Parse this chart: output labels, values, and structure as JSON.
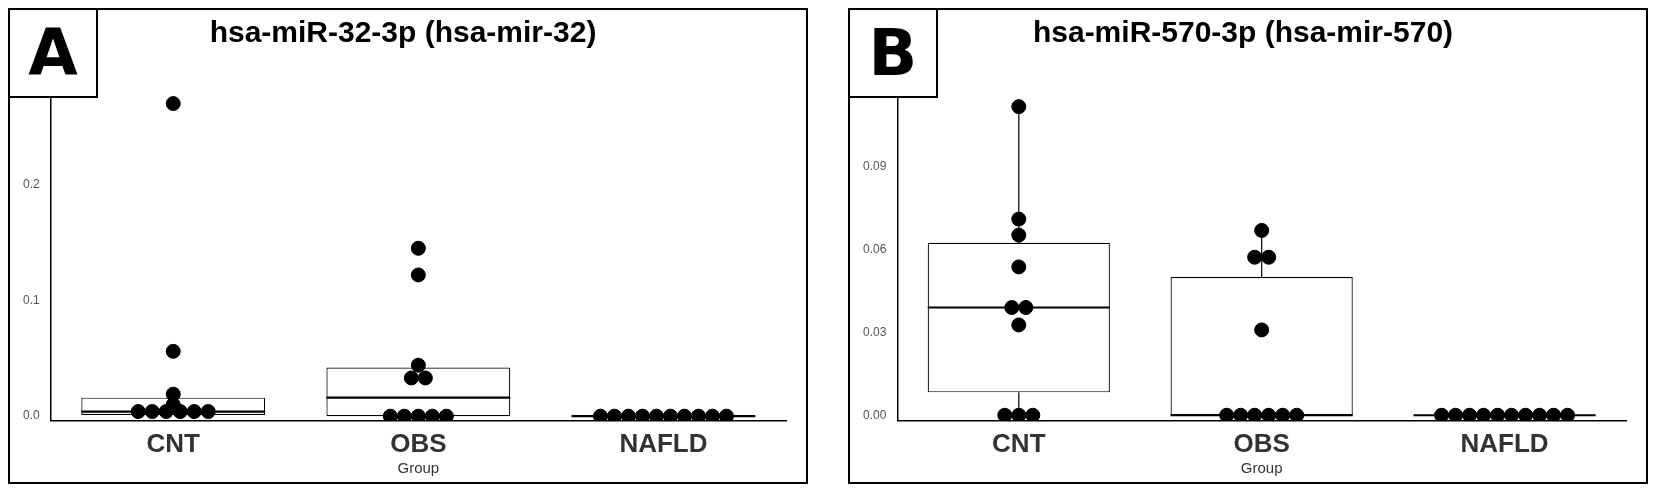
{
  "chart_data": [
    {
      "type": "box",
      "title": "hsa-miR-32-3p (hsa-mir-32)",
      "xlabel": "Group",
      "annotations": [
        "A"
      ],
      "categories": [
        "CNT",
        "OBS",
        "NAFLD"
      ],
      "ylim": [
        -0.004,
        0.28
      ],
      "yticks": [
        {
          "value": 0,
          "label": "0.0"
        },
        0.1,
        0.2
      ],
      "series": [
        {
          "type": "box",
          "color": "#000000",
          "boxes": [
            {
              "low": 0.001,
              "q1": 0.001,
              "median": 0.004,
              "q3": 0.016,
              "high": 0.019
            },
            {
              "low": 0,
              "q1": 0,
              "median": 0.016,
              "q3": 0.042,
              "high": 0.044
            },
            {
              "low": 0,
              "q1": 0,
              "median": 0,
              "q3": 0,
              "high": 0
            }
          ]
        },
        {
          "type": "scatter",
          "color": "#000000",
          "marker": "circle",
          "x": [
            "CNT",
            "CNT",
            "CNT",
            "CNT",
            "CNT",
            "CNT",
            "CNT",
            "CNT",
            "CNT",
            "CNT",
            "OBS",
            "OBS",
            "OBS",
            "OBS",
            "OBS",
            "OBS",
            "OBS",
            "OBS",
            "OBS",
            "OBS",
            "NAFLD",
            "NAFLD",
            "NAFLD",
            "NAFLD",
            "NAFLD",
            "NAFLD",
            "NAFLD",
            "NAFLD",
            "NAFLD",
            "NAFLD"
          ],
          "values": [
            0.27,
            0.056,
            0.019,
            0.01,
            0.004,
            0.004,
            0.004,
            0.004,
            0.004,
            0.004,
            0.145,
            0.122,
            0.044,
            0.033,
            0.033,
            0,
            0,
            0,
            0,
            0,
            0,
            0,
            0,
            0,
            0,
            0,
            0,
            0,
            0,
            0
          ]
        }
      ]
    },
    {
      "type": "box",
      "title": "hsa-miR-570-3p (hsa-mir-570)",
      "xlabel": "Group",
      "annotations": [
        "B"
      ],
      "categories": [
        "CNT",
        "OBS",
        "NAFLD"
      ],
      "ylim": [
        -0.002,
        0.117
      ],
      "yticks": [
        {
          "value": 0,
          "label": "0.00"
        },
        {
          "value": 0.03,
          "label": "0.03"
        },
        {
          "value": 0.06,
          "label": "0.06"
        },
        {
          "value": 0.09,
          "label": "0.09"
        }
      ],
      "series": [
        {
          "type": "box",
          "color": "#000000",
          "boxes": [
            {
              "low": 0,
              "q1": 0.0083,
              "median": 0.039,
              "q3": 0.0624,
              "high": 0.1117
            },
            {
              "low": 0,
              "q1": 0,
              "median": 0,
              "q3": 0.05,
              "high": 0.067
            },
            {
              "low": 0,
              "q1": 0,
              "median": 0,
              "q3": 0,
              "high": 0
            }
          ]
        },
        {
          "type": "scatter",
          "color": "#000000",
          "marker": "circle",
          "x": [
            "CNT",
            "CNT",
            "CNT",
            "CNT",
            "CNT",
            "CNT",
            "CNT",
            "CNT",
            "CNT",
            "CNT",
            "OBS",
            "OBS",
            "OBS",
            "OBS",
            "OBS",
            "OBS",
            "OBS",
            "OBS",
            "OBS",
            "OBS",
            "NAFLD",
            "NAFLD",
            "NAFLD",
            "NAFLD",
            "NAFLD",
            "NAFLD",
            "NAFLD",
            "NAFLD",
            "NAFLD",
            "NAFLD"
          ],
          "values": [
            0.1117,
            0.071,
            0.0652,
            0.0537,
            0.039,
            0.039,
            0.0327,
            0,
            0,
            0,
            0.0669,
            0.0572,
            0.0572,
            0.0309,
            0,
            0,
            0,
            0,
            0,
            0,
            0,
            0,
            0,
            0,
            0,
            0,
            0,
            0,
            0,
            0
          ]
        }
      ]
    }
  ]
}
